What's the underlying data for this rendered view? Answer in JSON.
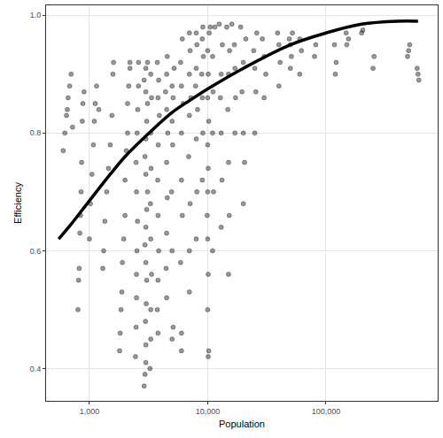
{
  "chart_data": {
    "type": "scatter",
    "x_label": "Population",
    "y_label": "Efficiency",
    "log": "x",
    "grid": true,
    "xlim": [
      430,
      880000
    ],
    "ylim": [
      0.345,
      1.017
    ],
    "xticks": [
      {
        "value": 1000,
        "label": "1,000"
      },
      {
        "value": 10000,
        "label": "10,000"
      },
      {
        "value": 100000,
        "label": "100,000"
      }
    ],
    "yticks": [
      0.4,
      0.6,
      0.8,
      {
        "value": 1,
        "label": "1.0"
      }
    ],
    "series": [
      {
        "type": "scatter",
        "marker": "circle",
        "color": "#000000",
        "x": [
          600,
          620,
          640,
          650,
          660,
          680,
          700,
          720,
          800,
          810,
          820,
          830,
          840,
          850,
          860,
          870,
          880,
          900,
          1000,
          1020,
          1050,
          1080,
          1100,
          1120,
          1150,
          1200,
          1300,
          1320,
          1350,
          1400,
          1450,
          1500,
          1550,
          1580,
          1600,
          1800,
          1820,
          1850,
          1880,
          1900,
          1950,
          2000,
          2000,
          2050,
          2100,
          2100,
          2150,
          2200,
          2200,
          2450,
          2480,
          2500,
          2500,
          2520,
          2550,
          2500,
          2480,
          2530,
          2560,
          2600,
          2600,
          2900,
          2950,
          3000,
          3000,
          2980,
          3020,
          3050,
          3000,
          2950,
          3000,
          3050,
          3100,
          3000,
          2950,
          3000,
          3050,
          3100,
          3000,
          2900,
          3000,
          3100,
          3250,
          3300,
          3300,
          3350,
          3300,
          3280,
          3320,
          3300,
          3350,
          3300,
          3800,
          3750,
          3800,
          3850,
          3800,
          3780,
          3820,
          3900,
          3800,
          3850,
          3750,
          4500,
          4450,
          4500,
          4550,
          4500,
          4600,
          4500,
          4400,
          4500,
          4550,
          5000,
          5100,
          5000,
          4950,
          5050,
          5000,
          5100,
          5000,
          5200,
          6000,
          6000,
          5900,
          6100,
          6000,
          6000,
          6200,
          6000,
          5900,
          6100,
          7000,
          7000,
          7100,
          6900,
          7000,
          7200,
          7000,
          7100,
          7000,
          8000,
          8100,
          8000,
          8200,
          7900,
          8000,
          8100,
          8000,
          9000,
          9100,
          9000,
          8900,
          9200,
          9000,
          9100,
          10100,
          10200,
          10000,
          10100,
          10000,
          9900,
          10000,
          10100,
          10000,
          10200,
          10000,
          10100,
          10000,
          10300,
          10500,
          11000,
          11200,
          11000,
          11100,
          11000,
          11500,
          13000,
          13200,
          13000,
          12800,
          13000,
          13300,
          12500,
          15000,
          15200,
          15000,
          14800,
          15000,
          15300,
          14500,
          17000,
          17200,
          17000,
          16800,
          16000,
          20000,
          20500,
          20000,
          19500,
          20000,
          21000,
          19000,
          25000,
          25500,
          25000,
          24500,
          26000,
          30000,
          31000,
          30000,
          29000,
          40000,
          41000,
          40000,
          39000,
          50000,
          51000,
          50000,
          49000,
          52000,
          60000,
          62000,
          60000,
          80000,
          82000,
          120000,
          122000,
          118000,
          150000,
          155000,
          148000,
          200000,
          205000,
          250000,
          255000,
          500000,
          510000,
          490000,
          600000,
          610000,
          590000
        ],
        "values": [
          0.77,
          0.8,
          0.83,
          0.84,
          0.86,
          0.88,
          0.9,
          0.81,
          0.5,
          0.55,
          0.57,
          0.63,
          0.66,
          0.7,
          0.75,
          0.82,
          0.85,
          0.87,
          0.62,
          0.68,
          0.73,
          0.78,
          0.82,
          0.85,
          0.88,
          0.84,
          0.57,
          0.6,
          0.65,
          0.7,
          0.74,
          0.78,
          0.83,
          0.9,
          0.92,
          0.43,
          0.46,
          0.5,
          0.53,
          0.58,
          0.62,
          0.66,
          0.72,
          0.77,
          0.8,
          0.85,
          0.88,
          0.92,
          0.91,
          0.42,
          0.47,
          0.52,
          0.56,
          0.6,
          0.65,
          0.7,
          0.75,
          0.8,
          0.84,
          0.88,
          0.92,
          0.37,
          0.39,
          0.41,
          0.44,
          0.48,
          0.51,
          0.55,
          0.58,
          0.61,
          0.64,
          0.67,
          0.7,
          0.73,
          0.76,
          0.79,
          0.82,
          0.85,
          0.87,
          0.89,
          0.91,
          0.92,
          0.4,
          0.45,
          0.5,
          0.56,
          0.62,
          0.68,
          0.74,
          0.8,
          0.86,
          0.9,
          0.46,
          0.5,
          0.55,
          0.6,
          0.66,
          0.72,
          0.78,
          0.83,
          0.86,
          0.89,
          0.92,
          0.52,
          0.57,
          0.63,
          0.69,
          0.75,
          0.8,
          0.84,
          0.87,
          0.9,
          0.93,
          0.45,
          0.47,
          0.6,
          0.7,
          0.78,
          0.82,
          0.86,
          0.88,
          0.91,
          0.43,
          0.46,
          0.58,
          0.66,
          0.72,
          0.8,
          0.85,
          0.88,
          0.92,
          0.96,
          0.53,
          0.6,
          0.68,
          0.76,
          0.83,
          0.86,
          0.9,
          0.94,
          0.97,
          0.62,
          0.7,
          0.79,
          0.84,
          0.88,
          0.91,
          0.95,
          0.97,
          0.72,
          0.8,
          0.86,
          0.9,
          0.93,
          0.96,
          0.98,
          0.42,
          0.43,
          0.5,
          0.56,
          0.62,
          0.66,
          0.7,
          0.74,
          0.78,
          0.82,
          0.86,
          0.9,
          0.94,
          0.97,
          0.98,
          0.6,
          0.7,
          0.8,
          0.87,
          0.93,
          0.98,
          0.64,
          0.72,
          0.8,
          0.86,
          0.9,
          0.95,
          0.985,
          0.56,
          0.66,
          0.75,
          0.84,
          0.9,
          0.94,
          0.98,
          0.8,
          0.86,
          0.91,
          0.95,
          0.985,
          0.68,
          0.75,
          0.8,
          0.87,
          0.92,
          0.96,
          0.98,
          0.8,
          0.87,
          0.91,
          0.94,
          0.97,
          0.86,
          0.9,
          0.93,
          0.96,
          0.88,
          0.92,
          0.95,
          0.97,
          0.91,
          0.93,
          0.95,
          0.96,
          0.97,
          0.9,
          0.94,
          0.96,
          0.93,
          0.95,
          0.9,
          0.92,
          0.95,
          0.95,
          0.96,
          0.97,
          0.97,
          0.975,
          0.91,
          0.93,
          0.94,
          0.95,
          0.93,
          0.9,
          0.89,
          0.91
        ]
      },
      {
        "type": "line",
        "line_style": "solid",
        "color": "#000000",
        "x": [
          550,
          700,
          1000,
          1500,
          2000,
          3000,
          5000,
          7000,
          10000,
          20000,
          50000,
          100000,
          200000,
          400000,
          600000
        ],
        "values": [
          0.62,
          0.645,
          0.685,
          0.73,
          0.76,
          0.795,
          0.835,
          0.855,
          0.875,
          0.91,
          0.95,
          0.97,
          0.985,
          0.99,
          0.99
        ]
      }
    ]
  }
}
